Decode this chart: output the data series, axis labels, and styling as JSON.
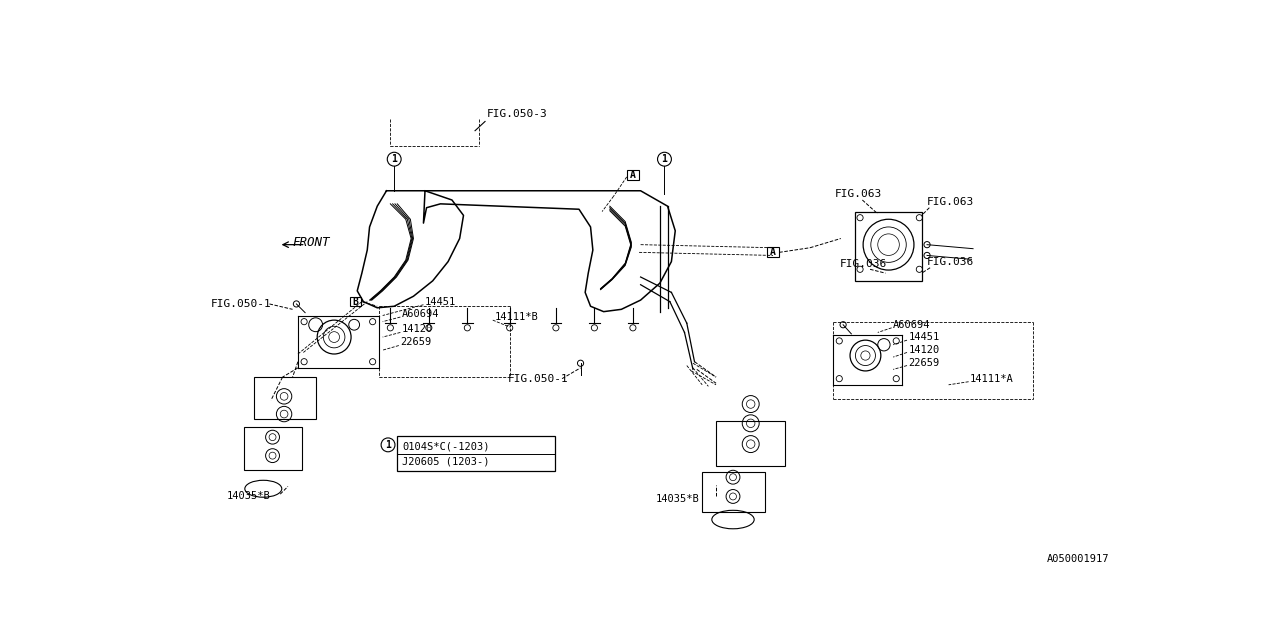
{
  "bg_color": "#ffffff",
  "line_color": "#000000",
  "part_number_bottom_right": "A050001917",
  "labels": {
    "fig050_3": "FIG.050-3",
    "fig050_1_left": "FIG.050-1",
    "fig050_1_bot": "FIG.050-1",
    "fig063_left": "FIG.063",
    "fig063_right": "FIG.063",
    "fig036_left": "FIG.036",
    "fig036_right": "FIG.036",
    "front": "FRONT",
    "part_14451_left": "14451",
    "part_A60694_left": "A60694",
    "part_14111B": "14111*B",
    "part_14120_left": "14120",
    "part_22659_left": "22659",
    "part_14035B_left": "14035*B",
    "part_14035B_right": "14035*B",
    "part_14451_right": "14451",
    "part_A60694_right": "A60694",
    "part_14111A": "14111*A",
    "part_14120_right": "14120",
    "part_22659_right": "22659",
    "note_box_line1": "0104S*C(-1203)",
    "note_box_line2": "J20605 (1203-)"
  }
}
